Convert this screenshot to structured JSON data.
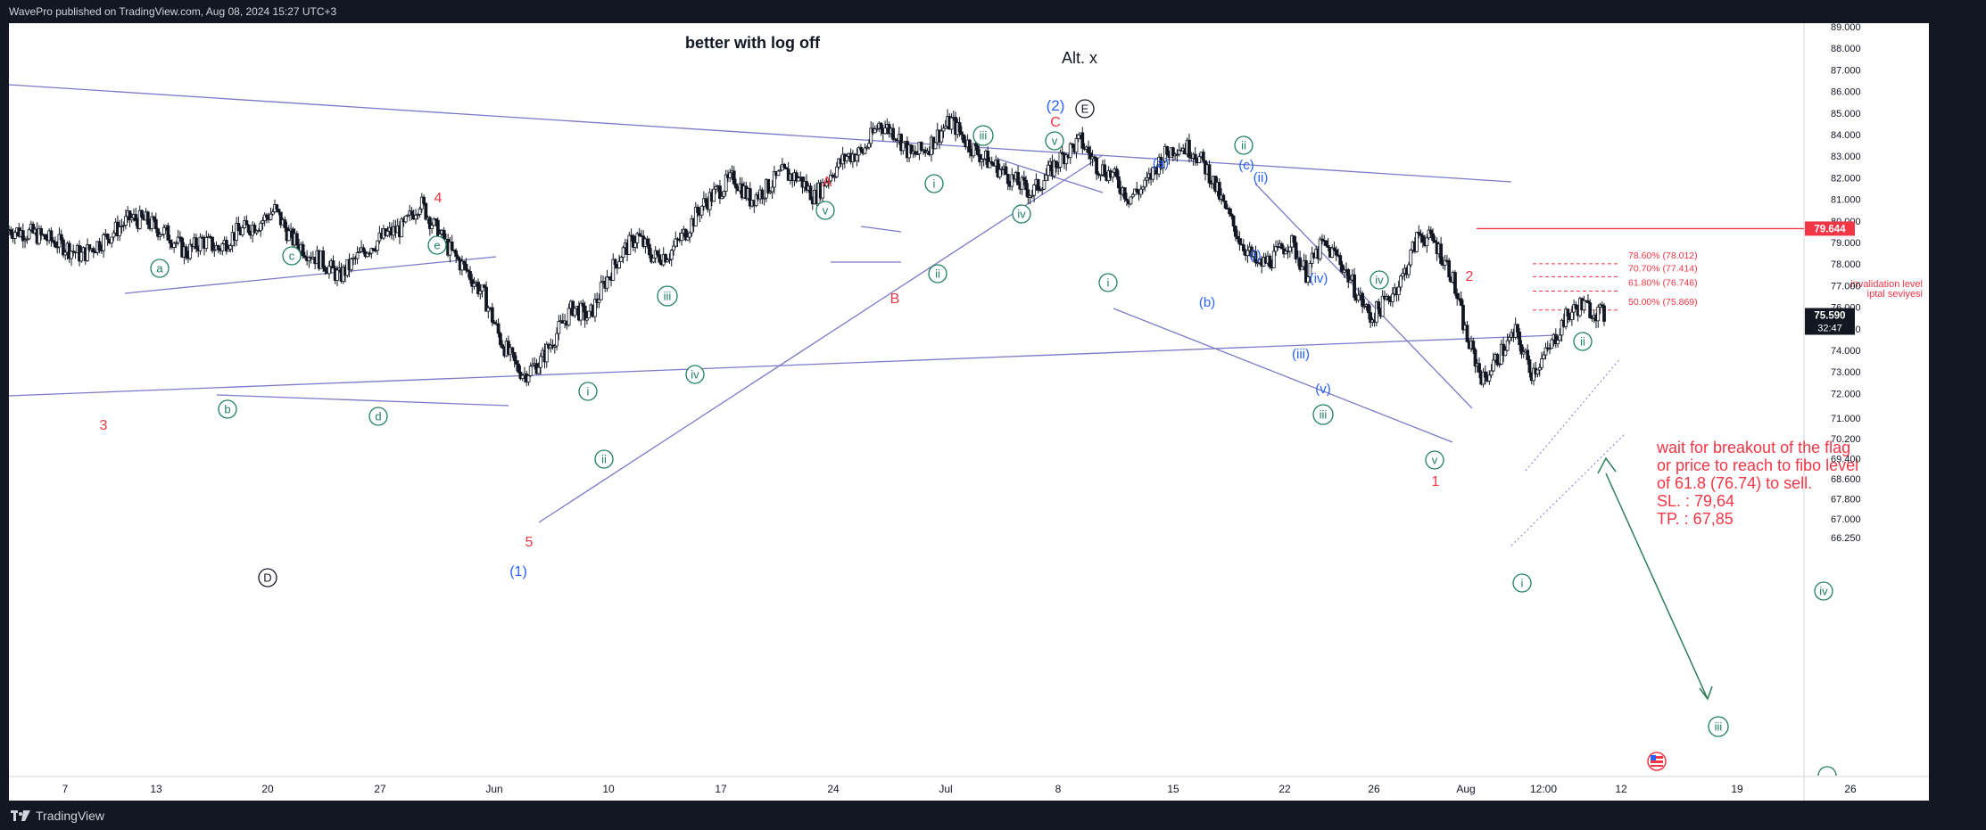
{
  "header": {
    "published": "WavePro published on TradingView.com, Aug 08, 2024 15:27 UTC+3"
  },
  "footer": {
    "brand": "TradingView",
    "logo_icon": "tradingview-logo-icon"
  },
  "colors": {
    "background": "#ffffff",
    "frame": "#131722",
    "candle": "#131722",
    "trendline": "#7b79c7",
    "wave_green": "#1e7f5c",
    "wave_red": "#f23645",
    "wave_blue": "#2962ff",
    "wave_black": "#131722",
    "price_tag": "#131722",
    "invalidation": "#f23645",
    "arrow": "#2e7d5b"
  },
  "annotations": {
    "title_note": "better with log off",
    "alt_label": "Alt. x",
    "invalidation_line1": "invalidation level",
    "invalidation_line2": "iptal seviyesi",
    "trade_note": [
      "wait for breakout of the flag",
      "or price to reach to fibo level",
      "of 61.8 (76.74) to sell.",
      "SL. : 79,64",
      "TP. : 67,85"
    ]
  },
  "chart_data": {
    "type": "candlestick",
    "symbol": "",
    "interval": "1h",
    "x_ticks": [
      "7",
      "13",
      "20",
      "27",
      "Jun",
      "10",
      "17",
      "24",
      "Jul",
      "8",
      "15",
      "22",
      "26",
      "Aug",
      "12:00",
      "12",
      "19",
      "26"
    ],
    "y_ticks": [
      "89.000",
      "88.000",
      "87.000",
      "86.000",
      "85.000",
      "84.000",
      "83.000",
      "82.000",
      "81.000",
      "80.000",
      "79.000",
      "78.000",
      "77.000",
      "76.000",
      "75.000",
      "74.000",
      "73.000",
      "72.000",
      "71.000",
      "70.200",
      "69.400",
      "68.600",
      "67.800",
      "67.000",
      "66.250"
    ],
    "ylim": [
      66.0,
      89.2
    ],
    "scale": "linear",
    "grid": false,
    "price_labels": {
      "last": "75.590",
      "countdown": "32:47",
      "invalidation": "79.644"
    },
    "fib_levels": [
      {
        "label": "78.60% (78.012)",
        "value": 78.012
      },
      {
        "label": "70.70% (77.414)",
        "value": 77.414
      },
      {
        "label": "61.80% (76.746)",
        "value": 76.746
      },
      {
        "label": "50.00% (75.869)",
        "value": 75.869
      }
    ],
    "price_path": [
      [
        0,
        79.6
      ],
      [
        3,
        79.4
      ],
      [
        6,
        79.0
      ],
      [
        9,
        78.4
      ],
      [
        12,
        79.2
      ],
      [
        15,
        80.1
      ],
      [
        17,
        80.0
      ],
      [
        20,
        79.3
      ],
      [
        22,
        78.5
      ],
      [
        24,
        79.1
      ],
      [
        26,
        78.7
      ],
      [
        28,
        79.4
      ],
      [
        31,
        79.9
      ],
      [
        33,
        80.5
      ],
      [
        35,
        79.2
      ],
      [
        37,
        78.6
      ],
      [
        39,
        78.1
      ],
      [
        41,
        77.4
      ],
      [
        44,
        78.6
      ],
      [
        47,
        79.4
      ],
      [
        49,
        79.7
      ],
      [
        51,
        80.9
      ],
      [
        53,
        79.6
      ],
      [
        55,
        78.5
      ],
      [
        57,
        77.6
      ],
      [
        59,
        76.5
      ],
      [
        61,
        74.5
      ],
      [
        63,
        73.2
      ],
      [
        64,
        72.9
      ],
      [
        66,
        73.5
      ],
      [
        68,
        74.8
      ],
      [
        70,
        76.0
      ],
      [
        72,
        75.5
      ],
      [
        74,
        77.2
      ],
      [
        76,
        78.5
      ],
      [
        78,
        79.3
      ],
      [
        80,
        78.3
      ],
      [
        82,
        78.5
      ],
      [
        84,
        79.5
      ],
      [
        86,
        80.7
      ],
      [
        88,
        81.4
      ],
      [
        90,
        82.0
      ],
      [
        92,
        81.0
      ],
      [
        94,
        81.5
      ],
      [
        96,
        82.2
      ],
      [
        98,
        82.0
      ],
      [
        100,
        81.1
      ],
      [
        102,
        82.2
      ],
      [
        104,
        83.0
      ],
      [
        106,
        83.2
      ],
      [
        108,
        84.5
      ],
      [
        110,
        84.1
      ],
      [
        112,
        83.0
      ],
      [
        114,
        83.4
      ],
      [
        116,
        84.3
      ],
      [
        117,
        84.6
      ],
      [
        119,
        83.6
      ],
      [
        121,
        82.9
      ],
      [
        123,
        82.4
      ],
      [
        125,
        81.8
      ],
      [
        127,
        81.3
      ],
      [
        129,
        82.2
      ],
      [
        131,
        83.1
      ],
      [
        133,
        83.7
      ],
      [
        135,
        82.6
      ],
      [
        137,
        82.1
      ],
      [
        139,
        81.1
      ],
      [
        141,
        81.6
      ],
      [
        143,
        82.9
      ],
      [
        145,
        83.5
      ],
      [
        147,
        83.3
      ],
      [
        149,
        82.2
      ],
      [
        151,
        80.5
      ],
      [
        153,
        79.0
      ],
      [
        155,
        77.9
      ],
      [
        157,
        78.3
      ],
      [
        159,
        79.1
      ],
      [
        161,
        77.6
      ],
      [
        163,
        78.9
      ],
      [
        165,
        78.3
      ],
      [
        167,
        76.9
      ],
      [
        169,
        75.5
      ],
      [
        171,
        76.3
      ],
      [
        173,
        77.4
      ],
      [
        175,
        79.4
      ],
      [
        177,
        79.0
      ],
      [
        179,
        77.6
      ],
      [
        181,
        74.5
      ],
      [
        183,
        72.6
      ],
      [
        185,
        73.8
      ],
      [
        187,
        74.8
      ],
      [
        189,
        73.0
      ],
      [
        191,
        73.9
      ],
      [
        193,
        75.4
      ],
      [
        195,
        76.1
      ],
      [
        197,
        75.8
      ],
      [
        198,
        75.59
      ]
    ],
    "price_path_x_unit": "hourly bar index"
  },
  "wave_labels": [
    {
      "t": "3",
      "c": "wave_red",
      "x": 116,
      "y": 476,
      "s": 16,
      "circ": false
    },
    {
      "t": "4",
      "c": "wave_red",
      "x": 491,
      "y": 221,
      "s": 16,
      "circ": false
    },
    {
      "t": "5",
      "c": "wave_red",
      "x": 593,
      "y": 607,
      "s": 16,
      "circ": false
    },
    {
      "t": "A",
      "c": "wave_red",
      "x": 927,
      "y": 203,
      "s": 16,
      "circ": false
    },
    {
      "t": "B",
      "c": "wave_red",
      "x": 1003,
      "y": 334,
      "s": 16,
      "circ": false
    },
    {
      "t": "C",
      "c": "wave_red",
      "x": 1183,
      "y": 136,
      "s": 16,
      "circ": false
    },
    {
      "t": "1",
      "c": "wave_red",
      "x": 1609,
      "y": 539,
      "s": 16,
      "circ": false
    },
    {
      "t": "2",
      "c": "wave_red",
      "x": 1647,
      "y": 309,
      "s": 16,
      "circ": false
    },
    {
      "t": "(1)",
      "c": "wave_blue",
      "x": 581,
      "y": 640,
      "s": 16,
      "circ": false
    },
    {
      "t": "(2)",
      "c": "wave_blue",
      "x": 1183,
      "y": 118,
      "s": 17,
      "circ": false
    },
    {
      "t": "(a)",
      "c": "wave_blue",
      "x": 1301,
      "y": 182,
      "s": 15,
      "circ": false
    },
    {
      "t": "(b)",
      "c": "wave_blue",
      "x": 1353,
      "y": 338,
      "s": 15,
      "circ": false
    },
    {
      "t": "(c)",
      "c": "wave_blue",
      "x": 1397,
      "y": 184,
      "s": 15,
      "circ": false
    },
    {
      "t": "(ii)",
      "c": "wave_blue",
      "x": 1413,
      "y": 198,
      "s": 15,
      "circ": false
    },
    {
      "t": "(i)",
      "c": "wave_blue",
      "x": 1407,
      "y": 285,
      "s": 15,
      "circ": false
    },
    {
      "t": "(iv)",
      "c": "wave_blue",
      "x": 1478,
      "y": 311,
      "s": 15,
      "circ": false
    },
    {
      "t": "(iii)",
      "c": "wave_blue",
      "x": 1458,
      "y": 396,
      "s": 15,
      "circ": false
    },
    {
      "t": "(v)",
      "c": "wave_blue",
      "x": 1483,
      "y": 435,
      "s": 15,
      "circ": false
    },
    {
      "t": "a",
      "c": "wave_green",
      "x": 179,
      "y": 301,
      "s": 13,
      "circ": true
    },
    {
      "t": "b",
      "c": "wave_green",
      "x": 255,
      "y": 459,
      "s": 13,
      "circ": true
    },
    {
      "t": "c",
      "c": "wave_green",
      "x": 327,
      "y": 287,
      "s": 13,
      "circ": true
    },
    {
      "t": "d",
      "c": "wave_green",
      "x": 424,
      "y": 467,
      "s": 13,
      "circ": true
    },
    {
      "t": "e",
      "c": "wave_green",
      "x": 490,
      "y": 275,
      "s": 13,
      "circ": true
    },
    {
      "t": "i",
      "c": "wave_green",
      "x": 659,
      "y": 439,
      "s": 13,
      "circ": true
    },
    {
      "t": "ii",
      "c": "wave_green",
      "x": 677,
      "y": 515,
      "s": 13,
      "circ": true
    },
    {
      "t": "iii",
      "c": "wave_green",
      "x": 748,
      "y": 332,
      "s": 13,
      "circ": true
    },
    {
      "t": "iv",
      "c": "wave_green",
      "x": 779,
      "y": 420,
      "s": 13,
      "circ": true
    },
    {
      "t": "v",
      "c": "wave_green",
      "x": 925,
      "y": 236,
      "s": 13,
      "circ": true
    },
    {
      "t": "ii",
      "c": "wave_green",
      "x": 1051,
      "y": 307,
      "s": 13,
      "circ": true
    },
    {
      "t": "i",
      "c": "wave_green",
      "x": 1047,
      "y": 206,
      "s": 13,
      "circ": true
    },
    {
      "t": "iii",
      "c": "wave_green",
      "x": 1102,
      "y": 152,
      "s": 13,
      "circ": true
    },
    {
      "t": "iv",
      "c": "wave_green",
      "x": 1145,
      "y": 240,
      "s": 13,
      "circ": true
    },
    {
      "t": "v",
      "c": "wave_green",
      "x": 1182,
      "y": 158,
      "s": 13,
      "circ": true
    },
    {
      "t": "i",
      "c": "wave_green",
      "x": 1242,
      "y": 317,
      "s": 13,
      "circ": true
    },
    {
      "t": "ii",
      "c": "wave_green",
      "x": 1394,
      "y": 163,
      "s": 13,
      "circ": true
    },
    {
      "t": "iv",
      "c": "wave_green",
      "x": 1546,
      "y": 314,
      "s": 13,
      "circ": true
    },
    {
      "t": "iii",
      "c": "wave_green",
      "x": 1483,
      "y": 465,
      "s": 13,
      "circ": true
    },
    {
      "t": "v",
      "c": "wave_green",
      "x": 1608,
      "y": 516,
      "s": 13,
      "circ": true
    },
    {
      "t": "ii",
      "c": "wave_green",
      "x": 1774,
      "y": 383,
      "s": 13,
      "circ": true
    },
    {
      "t": "i",
      "c": "wave_green",
      "x": 1706,
      "y": 654,
      "s": 13,
      "circ": true
    },
    {
      "t": "iii",
      "c": "wave_green",
      "x": 1926,
      "y": 815,
      "s": 13,
      "circ": true
    },
    {
      "t": "iv",
      "c": "wave_green",
      "x": 2044,
      "y": 663,
      "s": 13,
      "circ": true
    },
    {
      "t": "E",
      "c": "wave_black",
      "x": 1216,
      "y": 122,
      "s": 13,
      "circ": true
    },
    {
      "t": "D",
      "c": "wave_black",
      "x": 300,
      "y": 648,
      "s": 13,
      "circ": true
    }
  ]
}
